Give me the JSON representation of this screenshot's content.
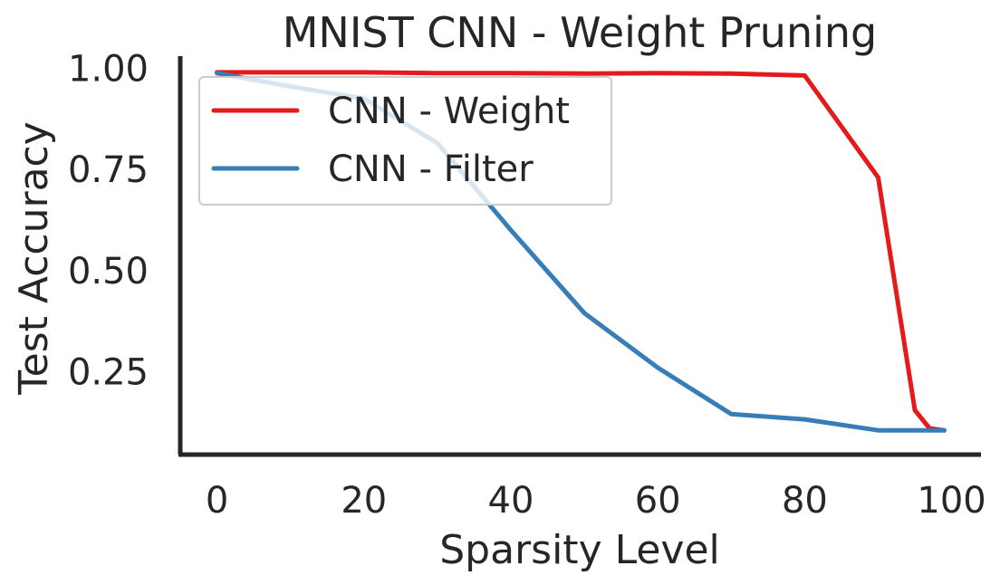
{
  "chart_data": {
    "type": "line",
    "title": "MNIST CNN - Weight Pruning",
    "xlabel": "Sparsity Level",
    "ylabel": "Test Accuracy",
    "xlim": [
      -5,
      104
    ],
    "ylim": [
      0.045,
      1.03
    ],
    "xticks": [
      0,
      20,
      40,
      60,
      80,
      100
    ],
    "xtick_labels": [
      "0",
      "20",
      "40",
      "60",
      "80",
      "100"
    ],
    "yticks": [
      0.25,
      0.5,
      0.75,
      1.0
    ],
    "ytick_labels": [
      "0.25",
      "0.50",
      "0.75",
      "1.00"
    ],
    "grid": false,
    "legend_position": "upper-left",
    "series": [
      {
        "name": "CNN - Weight",
        "color": "#e41a1c",
        "x": [
          0,
          10,
          20,
          30,
          40,
          50,
          60,
          70,
          80,
          90,
          95,
          97,
          99
        ],
        "y": [
          0.99,
          0.99,
          0.99,
          0.988,
          0.988,
          0.987,
          0.988,
          0.987,
          0.982,
          0.73,
          0.155,
          0.11,
          0.105
        ]
      },
      {
        "name": "CNN - Filter",
        "color": "#377eb8",
        "x": [
          0,
          10,
          20,
          30,
          40,
          50,
          60,
          70,
          80,
          90,
          95,
          99
        ],
        "y": [
          0.988,
          0.955,
          0.925,
          0.815,
          0.6,
          0.395,
          0.26,
          0.145,
          0.132,
          0.105,
          0.105,
          0.105
        ]
      }
    ]
  }
}
